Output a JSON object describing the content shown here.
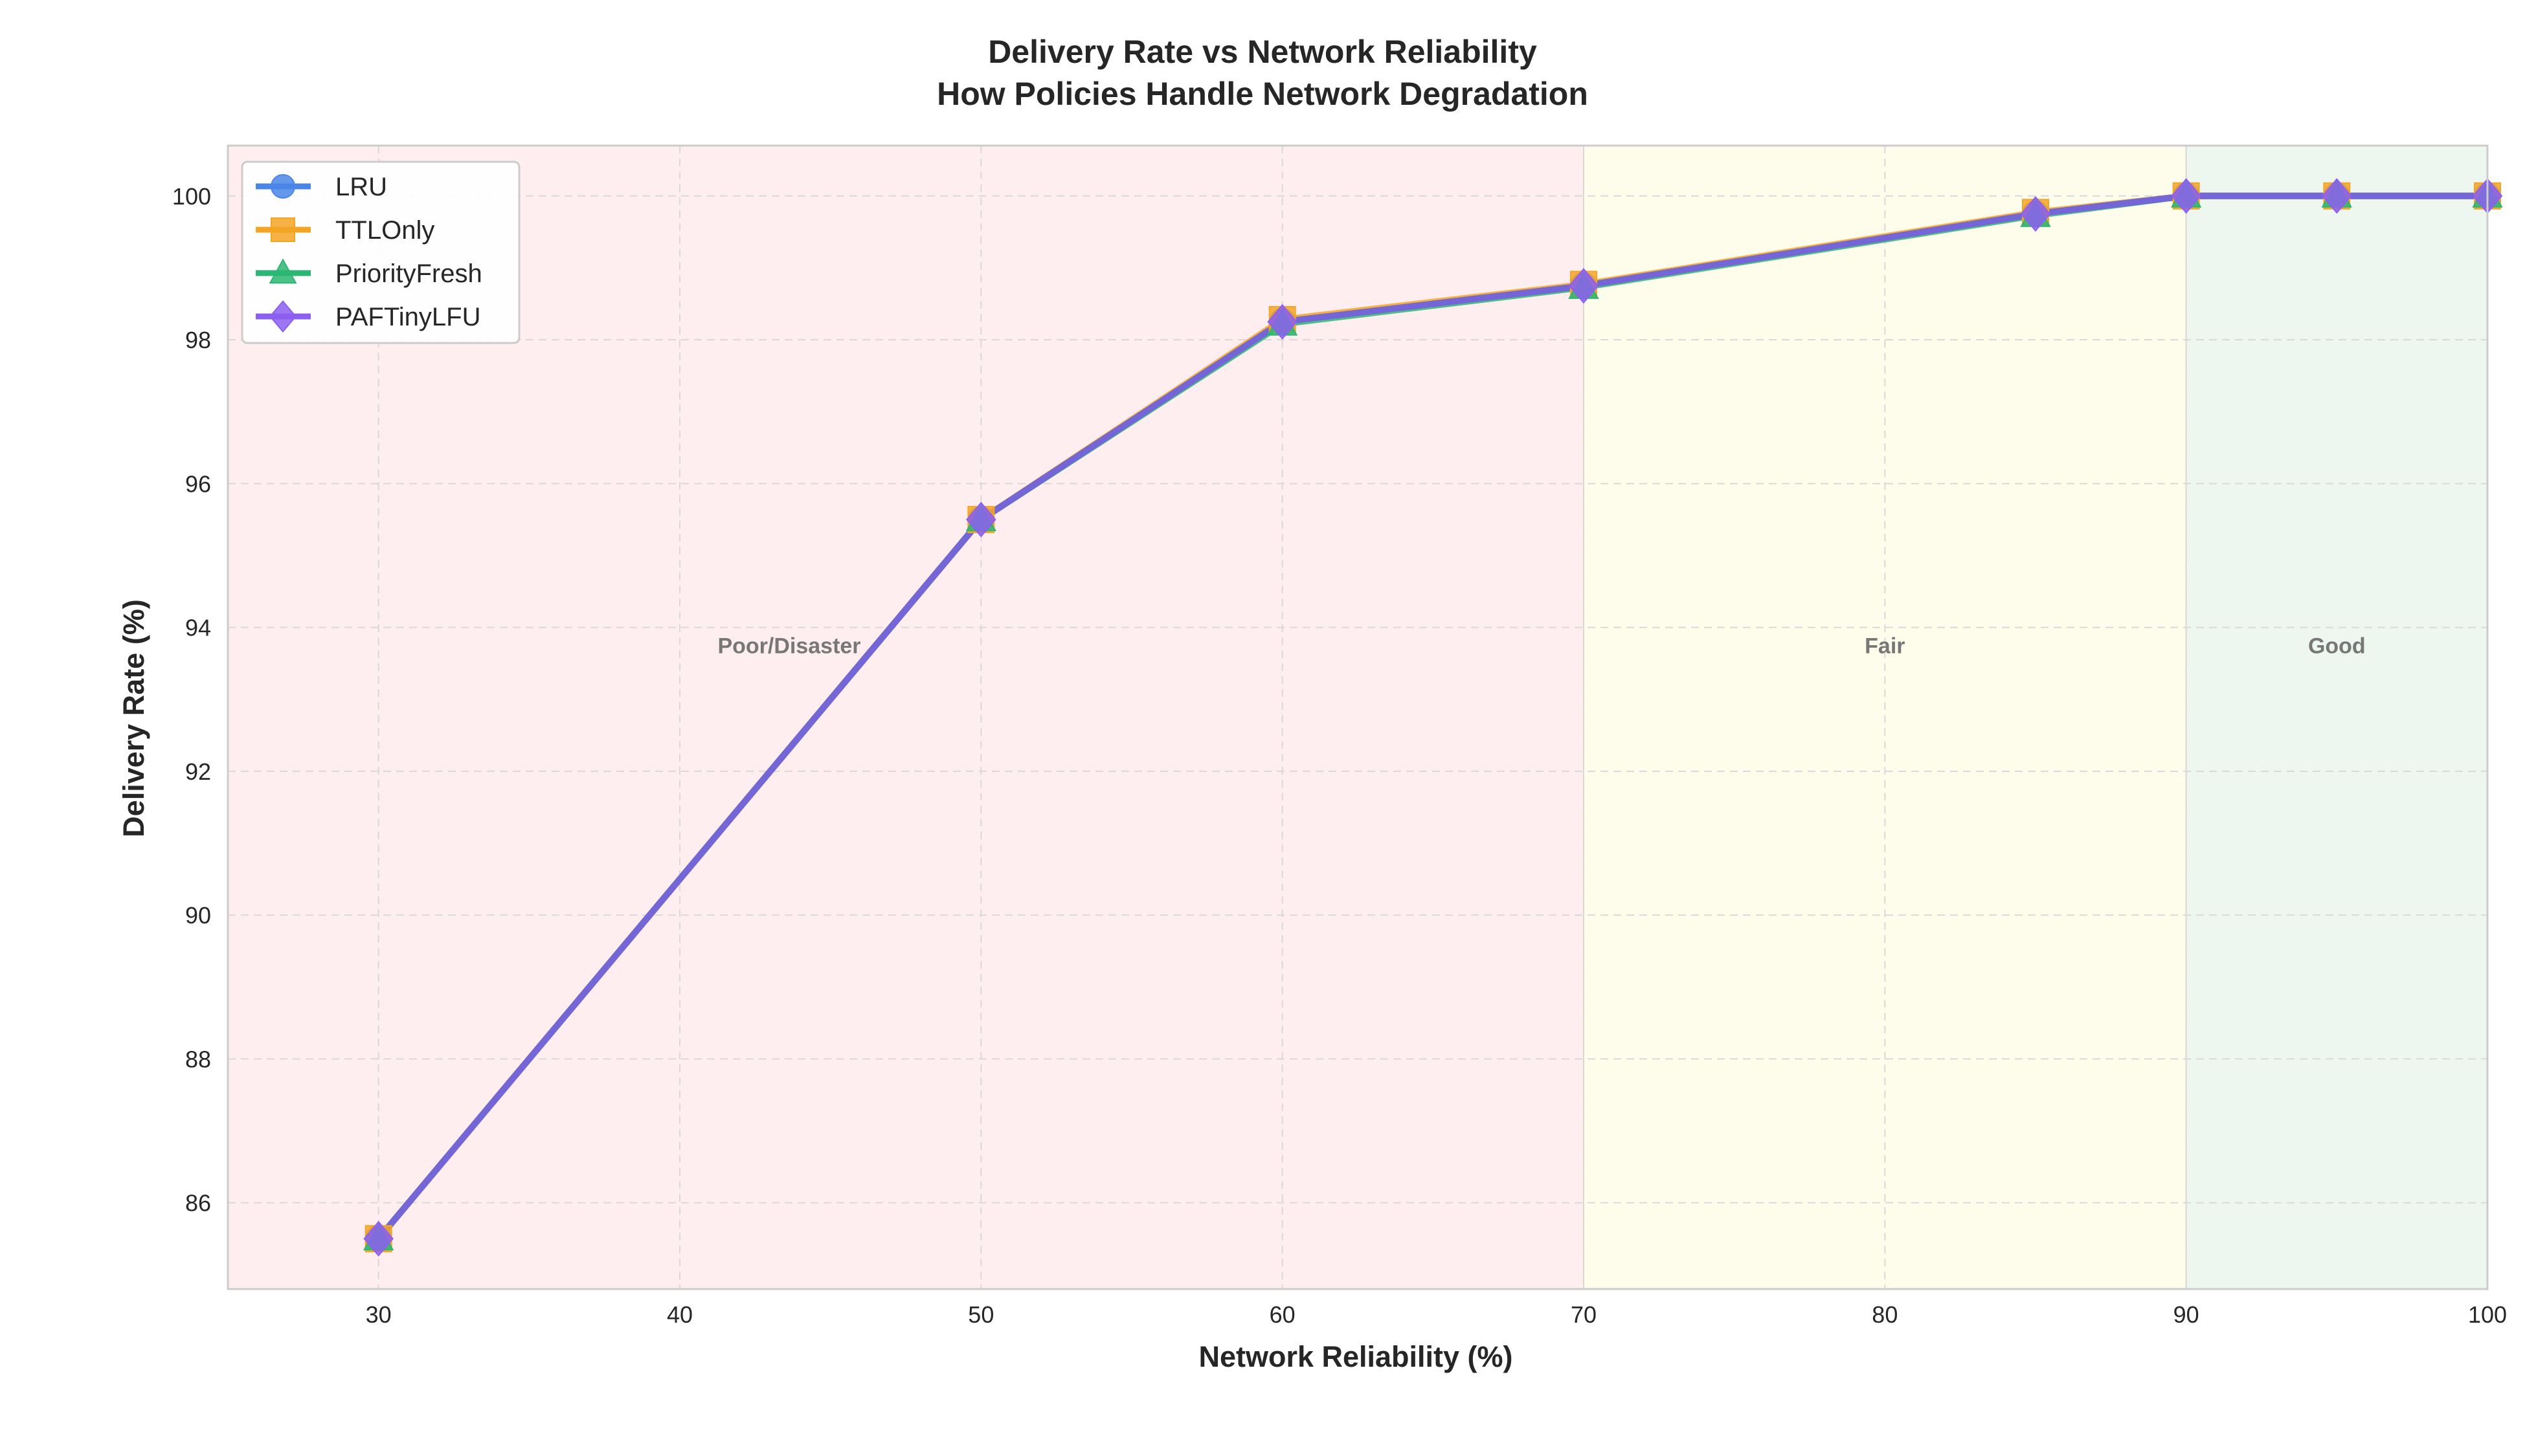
{
  "chart_data": {
    "type": "line",
    "title": "Delivery Rate vs Network Reliability",
    "subtitle": "How Policies Handle Network Degradation",
    "xlabel": "Network Reliability (%)",
    "ylabel": "Delivery Rate (%)",
    "xlim": [
      25,
      100
    ],
    "ylim": [
      84.8,
      100.7
    ],
    "xticks": [
      30,
      40,
      50,
      60,
      70,
      80,
      90,
      100
    ],
    "yticks": [
      86,
      88,
      90,
      92,
      94,
      96,
      98,
      100
    ],
    "grid": true,
    "legend_position": "top-left",
    "x": [
      30,
      50,
      60,
      70,
      85,
      90,
      95,
      100
    ],
    "series": [
      {
        "name": "LRU",
        "color": "#4a86e8",
        "marker": "circle",
        "values": [
          85.5,
          95.5,
          98.25,
          98.75,
          99.75,
          100,
          100,
          100
        ]
      },
      {
        "name": "TTLOnly",
        "color": "#f5a524",
        "marker": "square",
        "values": [
          85.5,
          95.5,
          98.28,
          98.77,
          99.77,
          100,
          100,
          100
        ]
      },
      {
        "name": "PriorityFresh",
        "color": "#2bb673",
        "marker": "triangle",
        "values": [
          85.5,
          95.5,
          98.22,
          98.73,
          99.73,
          100,
          100,
          100
        ]
      },
      {
        "name": "PAFTinyLFU",
        "color": "#8c5ff0",
        "marker": "diamond",
        "values": [
          85.5,
          95.5,
          98.25,
          98.75,
          99.75,
          100,
          100,
          100
        ]
      }
    ],
    "regions": [
      {
        "label": "Poor/Disaster",
        "x0": 25,
        "x1": 70,
        "color": "#fde2e6"
      },
      {
        "label": "Fair",
        "x0": 70,
        "x1": 90,
        "color": "#fdfbe0"
      },
      {
        "label": "Good",
        "x0": 90,
        "x1": 100,
        "color": "#e2f1e4"
      }
    ],
    "region_label_y": 93.75,
    "line_color": "#7466d6"
  }
}
